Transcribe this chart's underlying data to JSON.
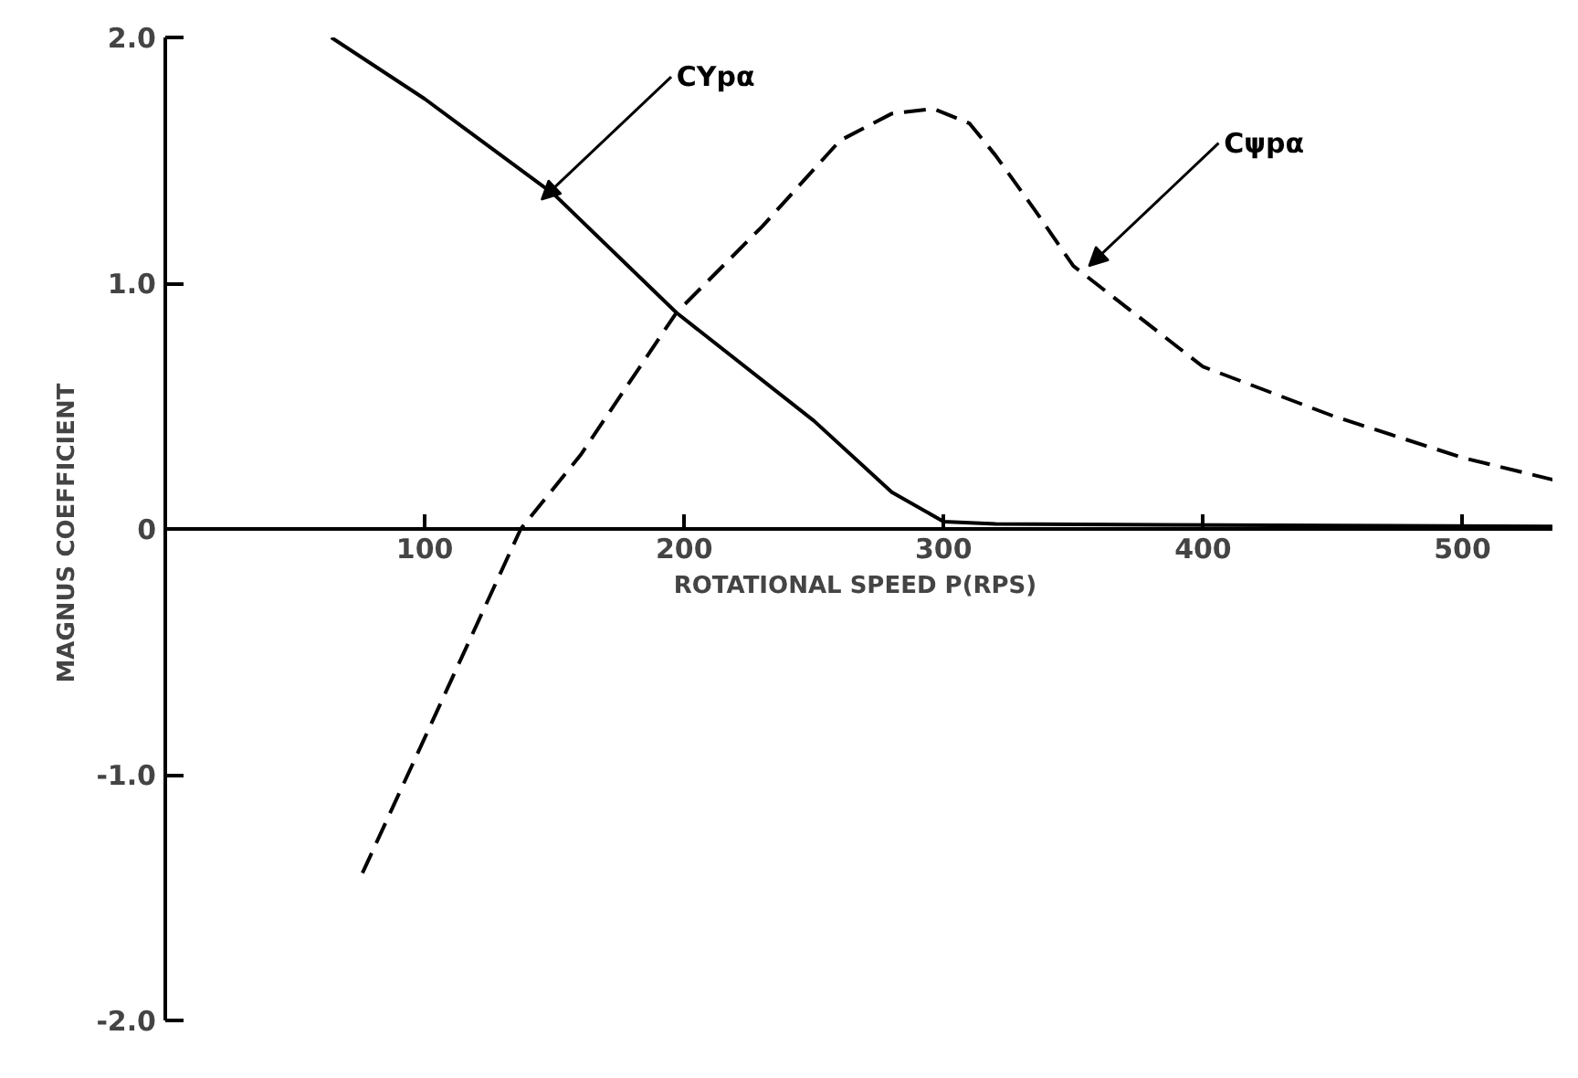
{
  "chart_data": {
    "type": "line",
    "xlabel": "ROTATIONAL SPEED  P(RPS)",
    "ylabel": "MAGNUS  COEFFICIENT",
    "xlim": [
      0,
      535
    ],
    "ylim": [
      -2.0,
      2.0
    ],
    "xticks": [
      100,
      200,
      300,
      400,
      500
    ],
    "yticks": [
      {
        "value": 2.0,
        "label": "2.0"
      },
      {
        "value": 1.0,
        "label": "1.0"
      },
      0,
      {
        "value": -1.0,
        "label": "-1.0"
      },
      {
        "value": -2.0,
        "label": "-2.0"
      }
    ],
    "grid": false,
    "marker": "none",
    "series": [
      {
        "color": "#000000",
        "line_style": "solid",
        "x": [
          64,
          100,
          150,
          197,
          250,
          280,
          300,
          320,
          535
        ],
        "values": [
          2.0,
          1.75,
          1.36,
          0.88,
          0.44,
          0.15,
          0.03,
          0.02,
          0.01
        ]
      },
      {
        "color": "#000000",
        "line_style": "dashed",
        "x": [
          76,
          100,
          137,
          160,
          197,
          230,
          260,
          280,
          296,
          310,
          320,
          335,
          350,
          400,
          450,
          500,
          535
        ],
        "values": [
          -1.4,
          -0.85,
          0,
          0.3,
          0.88,
          1.23,
          1.58,
          1.69,
          1.71,
          1.65,
          1.52,
          1.3,
          1.07,
          0.66,
          0.46,
          0.29,
          0.2
        ]
      }
    ],
    "annotations": [
      {
        "text": "CYpα",
        "x": 145,
        "y": 1.34
      },
      {
        "text": "Cψpα",
        "x": 356,
        "y": 1.07
      }
    ]
  }
}
